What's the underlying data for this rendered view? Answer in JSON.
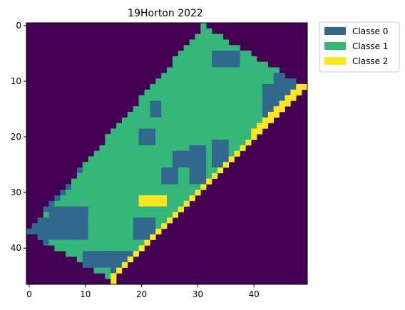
{
  "chart_data": {
    "type": "heatmap",
    "title": "19Horton 2022",
    "xlabel": "",
    "ylabel": "",
    "xlim": [
      -0.5,
      49.5
    ],
    "ylim": [
      46.5,
      -0.5
    ],
    "x_ticks": [
      0,
      10,
      20,
      30,
      40
    ],
    "y_ticks": [
      0,
      10,
      20,
      30,
      40
    ],
    "grid": false,
    "legend_position": "outside-top-right",
    "background_class_color": "#440154",
    "classes": [
      {
        "name": "Classe 0",
        "value": 0,
        "color": "#31688e"
      },
      {
        "name": "Classe 1",
        "value": 1,
        "color": "#35b779"
      },
      {
        "name": "Classe 2",
        "value": 2,
        "color": "#fde725"
      }
    ],
    "region_description": "Rotated rectangular field polygon; band corners approx (31,0), (49,11), (15,46), (-0.5,37). Classe 1 fills most of the polygon, Classe 0 appears in patches along edges and interior, Classe 2 forms a thin line along the lower-right edge plus a small block near (21-24, 31-32)."
  }
}
